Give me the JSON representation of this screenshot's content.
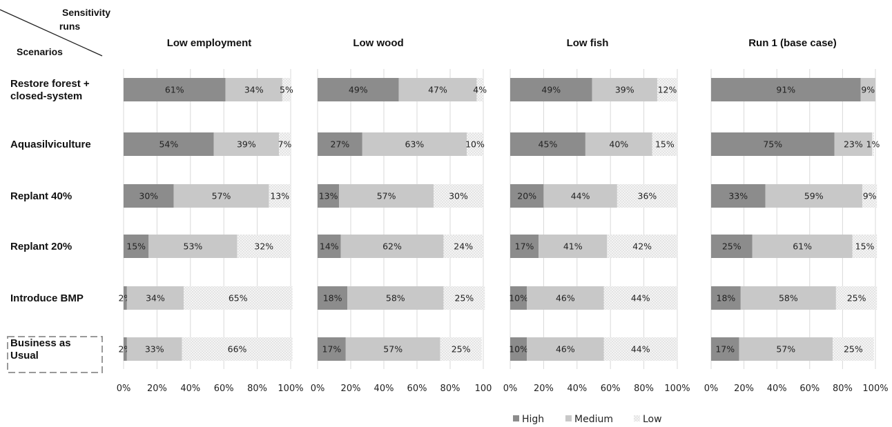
{
  "corner": {
    "top_label_line1": "Sensitivity",
    "top_label_line2": "runs",
    "bottom_label": "Scenarios"
  },
  "colors": {
    "High": "#8c8c8c",
    "Medium": "#c8c8c8",
    "Low": "#f2f2f2",
    "grid": "#d9d9d9",
    "panel_border": "#d0d0d0"
  },
  "legend": [
    "High",
    "Medium",
    "Low"
  ],
  "chart_data": [
    {
      "type": "bar",
      "stacked": true,
      "orientation": "horizontal",
      "title": "Low employment",
      "categories": [
        "Restore forest + closed-system",
        "Aquasilviculture",
        "Replant 40%",
        "Replant 20%",
        "Introduce BMP",
        "Business as Usual"
      ],
      "series": [
        {
          "name": "High",
          "values": [
            61,
            54,
            30,
            15,
            2,
            2
          ]
        },
        {
          "name": "Medium",
          "values": [
            34,
            39,
            57,
            53,
            34,
            33
          ]
        },
        {
          "name": "Low",
          "values": [
            5,
            7,
            13,
            32,
            65,
            66
          ]
        }
      ],
      "xlim": [
        0,
        100
      ],
      "xticks": [
        "0%",
        "20%",
        "40%",
        "60%",
        "80%",
        "100%"
      ]
    },
    {
      "type": "bar",
      "stacked": true,
      "orientation": "horizontal",
      "title": "Low wood",
      "categories": [
        "Restore forest + closed-system",
        "Aquasilviculture",
        "Replant 40%",
        "Replant 20%",
        "Introduce BMP",
        "Business as Usual"
      ],
      "series": [
        {
          "name": "High",
          "values": [
            49,
            27,
            13,
            14,
            18,
            17
          ]
        },
        {
          "name": "Medium",
          "values": [
            47,
            63,
            57,
            62,
            58,
            57
          ]
        },
        {
          "name": "Low",
          "values": [
            4,
            10,
            30,
            24,
            25,
            25
          ]
        }
      ],
      "xlim": [
        0,
        100
      ],
      "xticks": [
        "0%",
        "20%",
        "40%",
        "60%",
        "80%",
        "100"
      ]
    },
    {
      "type": "bar",
      "stacked": true,
      "orientation": "horizontal",
      "title": "Low fish",
      "categories": [
        "Restore forest + closed-system",
        "Aquasilviculture",
        "Replant 40%",
        "Replant 20%",
        "Introduce BMP",
        "Business as Usual"
      ],
      "series": [
        {
          "name": "High",
          "values": [
            49,
            45,
            20,
            17,
            10,
            10
          ]
        },
        {
          "name": "Medium",
          "values": [
            39,
            40,
            44,
            41,
            46,
            46
          ]
        },
        {
          "name": "Low",
          "values": [
            12,
            15,
            36,
            42,
            44,
            44
          ]
        }
      ],
      "xlim": [
        0,
        100
      ],
      "xticks": [
        "0%",
        "20%",
        "40%",
        "60%",
        "80%",
        "100%"
      ]
    },
    {
      "type": "bar",
      "stacked": true,
      "orientation": "horizontal",
      "title": "Run 1 (base case)",
      "categories": [
        "Restore forest + closed-system",
        "Aquasilviculture",
        "Replant 40%",
        "Replant 20%",
        "Introduce BMP",
        "Business as Usual"
      ],
      "series": [
        {
          "name": "High",
          "values": [
            91,
            75,
            33,
            25,
            18,
            17
          ]
        },
        {
          "name": "Medium",
          "values": [
            9,
            23,
            59,
            61,
            58,
            57
          ]
        },
        {
          "name": "Low",
          "values": [
            0,
            1,
            9,
            15,
            25,
            25
          ]
        }
      ],
      "xlim": [
        0,
        100
      ],
      "xticks": [
        "0%",
        "20%",
        "40%",
        "60%",
        "80%",
        "100%"
      ]
    }
  ],
  "row_labels": [
    [
      "Restore forest +",
      "closed-system"
    ],
    [
      "Aquasilviculture"
    ],
    [
      "Replant 40%"
    ],
    [
      "Replant 20%"
    ],
    [
      "Introduce BMP"
    ],
    [
      "Business as",
      "Usual"
    ]
  ]
}
